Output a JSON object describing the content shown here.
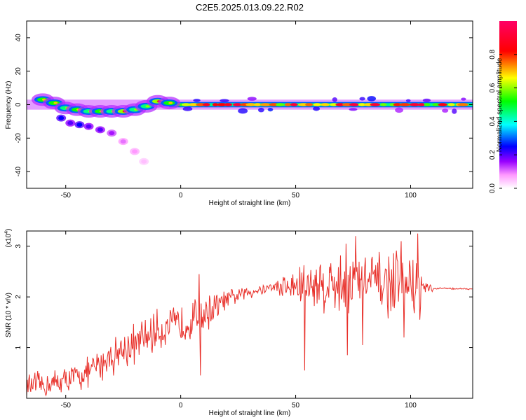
{
  "title": "C2E5.2025.013.09.22.R02",
  "chart_data": [
    {
      "type": "heatmap",
      "xlabel": "Height of straight line (km)",
      "ylabel": "Frequency (Hz)",
      "xlim": [
        -67,
        127
      ],
      "ylim": [
        -50,
        50
      ],
      "xticks": [
        -50,
        0,
        50,
        100
      ],
      "yticks": [
        -40,
        -20,
        0,
        20,
        40
      ],
      "colorbar": {
        "label": "Normalized spectral amplitude",
        "range": [
          0.0,
          1.0
        ],
        "ticks": [
          0.0,
          0.2,
          0.4,
          0.6,
          0.8
        ],
        "tick_labels": [
          "0.0",
          "0.2",
          "0.4",
          "0.6",
          "0.8"
        ],
        "colors": [
          "#ffffff",
          "#ff66ff",
          "#6600ff",
          "#0000ff",
          "#00ffff",
          "#00ff00",
          "#ffff00",
          "#ff0000",
          "#ff0066"
        ]
      },
      "main_band": {
        "frequency_hz": 0,
        "x_range": [
          -67,
          127
        ]
      },
      "low_altitude_branch": [
        {
          "x": -60,
          "freq": 3,
          "amp": 0.7
        },
        {
          "x": -55,
          "freq": 1,
          "amp": 0.7
        },
        {
          "x": -50,
          "freq": -2,
          "amp": 0.6
        },
        {
          "x": -45,
          "freq": -3,
          "amp": 0.7
        },
        {
          "x": -40,
          "freq": -4,
          "amp": 0.6
        },
        {
          "x": -35,
          "freq": -4,
          "amp": 0.7
        },
        {
          "x": -30,
          "freq": -4,
          "amp": 0.6
        },
        {
          "x": -25,
          "freq": -4,
          "amp": 0.8
        },
        {
          "x": -20,
          "freq": -3,
          "amp": 0.6
        },
        {
          "x": -15,
          "freq": -1,
          "amp": 0.6
        },
        {
          "x": -10,
          "freq": 2,
          "amp": 0.8
        },
        {
          "x": -5,
          "freq": 1,
          "amp": 0.7
        }
      ],
      "secondary_trace": [
        {
          "x": -52,
          "freq": -8,
          "amp": 0.25
        },
        {
          "x": -48,
          "freq": -11,
          "amp": 0.2
        },
        {
          "x": -44,
          "freq": -12,
          "amp": 0.25
        },
        {
          "x": -40,
          "freq": -13,
          "amp": 0.2
        },
        {
          "x": -35,
          "freq": -15,
          "amp": 0.2
        },
        {
          "x": -30,
          "freq": -17,
          "amp": 0.15
        },
        {
          "x": -25,
          "freq": -22,
          "amp": 0.1
        },
        {
          "x": -20,
          "freq": -28,
          "amp": 0.08
        },
        {
          "x": -16,
          "freq": -34,
          "amp": 0.05
        }
      ]
    },
    {
      "type": "line",
      "xlabel": "Height of straight line (km)",
      "ylabel": "SNR (10 * v/v)",
      "y_multiplier": "(x10",
      "y_multiplier_exp": "4",
      "y_multiplier_close": ")",
      "xlim": [
        -67,
        127
      ],
      "ylim": [
        0,
        3.3
      ],
      "xticks": [
        -50,
        0,
        50,
        100
      ],
      "yticks": [
        1,
        2,
        3
      ],
      "series": [
        {
          "color": "#e8302a",
          "trend": [
            {
              "x": -67,
              "y": 0.25
            },
            {
              "x": -60,
              "y": 0.25
            },
            {
              "x": -50,
              "y": 0.35
            },
            {
              "x": -40,
              "y": 0.5
            },
            {
              "x": -30,
              "y": 0.85
            },
            {
              "x": -20,
              "y": 1.05
            },
            {
              "x": -10,
              "y": 1.35
            },
            {
              "x": 0,
              "y": 1.45
            },
            {
              "x": 10,
              "y": 1.65
            },
            {
              "x": 20,
              "y": 1.95
            },
            {
              "x": 30,
              "y": 2.1
            },
            {
              "x": 40,
              "y": 2.2
            },
            {
              "x": 50,
              "y": 2.2
            },
            {
              "x": 60,
              "y": 2.25
            },
            {
              "x": 70,
              "y": 2.25
            },
            {
              "x": 80,
              "y": 2.3
            },
            {
              "x": 90,
              "y": 2.25
            },
            {
              "x": 100,
              "y": 2.25
            },
            {
              "x": 108,
              "y": 2.15
            },
            {
              "x": 115,
              "y": 2.17
            },
            {
              "x": 127,
              "y": 2.15
            }
          ],
          "noise_amplitude": [
            {
              "x": -67,
              "a": 0.3
            },
            {
              "x": -40,
              "a": 0.35
            },
            {
              "x": -25,
              "a": 0.5
            },
            {
              "x": 0,
              "a": 0.45
            },
            {
              "x": 10,
              "a": 0.5
            },
            {
              "x": 20,
              "a": 0.2
            },
            {
              "x": 40,
              "a": 0.12
            },
            {
              "x": 52,
              "a": 0.55
            },
            {
              "x": 70,
              "a": 0.75
            },
            {
              "x": 85,
              "a": 0.7
            },
            {
              "x": 100,
              "a": 0.75
            },
            {
              "x": 107,
              "a": 0.25
            },
            {
              "x": 110,
              "a": 0.02
            },
            {
              "x": 127,
              "a": 0.02
            }
          ],
          "spikes": [
            {
              "x": 8,
              "y": 2.45
            },
            {
              "x": 8.5,
              "y": 0.45
            },
            {
              "x": 54,
              "y": 0.55
            },
            {
              "x": 72,
              "y": 3.05
            },
            {
              "x": 72.5,
              "y": 0.85
            },
            {
              "x": 76,
              "y": 3.2
            },
            {
              "x": 79,
              "y": 1.05
            },
            {
              "x": 96,
              "y": 3.1
            },
            {
              "x": 97,
              "y": 1.2
            },
            {
              "x": 103,
              "y": 3.25
            },
            {
              "x": 104,
              "y": 1.55
            }
          ]
        }
      ]
    }
  ]
}
